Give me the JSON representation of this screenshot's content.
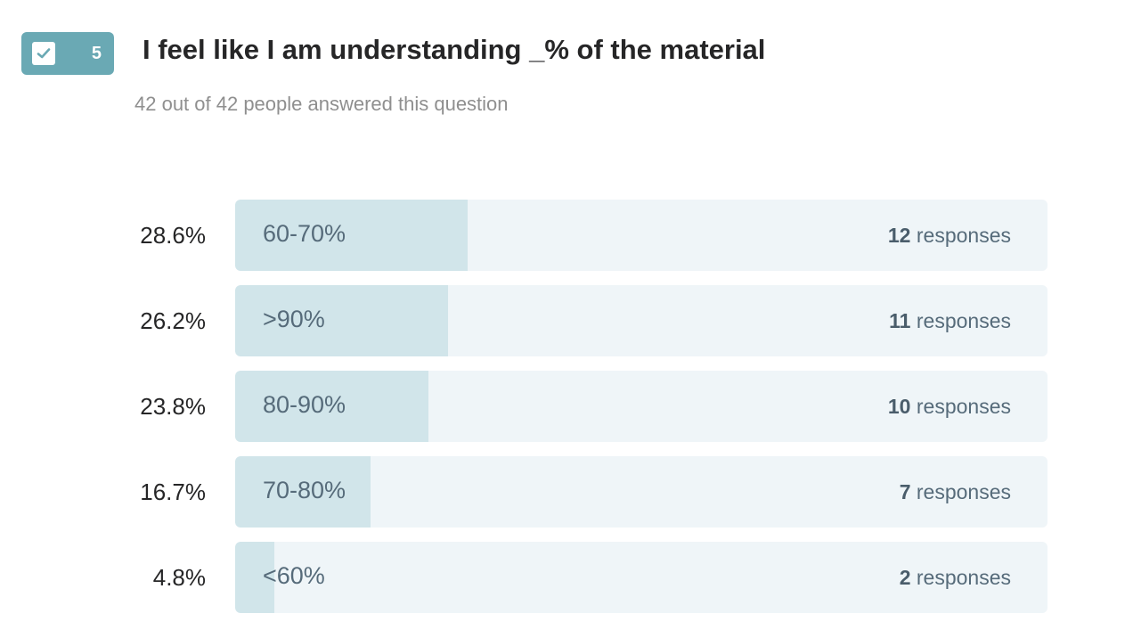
{
  "question": {
    "number": "5",
    "title": "I feel like I am understanding _% of the material",
    "answered_summary": "42 out of 42 people answered this question"
  },
  "colors": {
    "badge": "#6aa9b4",
    "bar_fill": "#d1e5ea",
    "bar_track": "#eff5f8",
    "label_text": "#566b7a"
  },
  "chart_data": {
    "type": "bar",
    "orientation": "horizontal",
    "title": "I feel like I am understanding _% of the material",
    "xlim": [
      0,
      100
    ],
    "categories": [
      "60-70%",
      ">90%",
      "80-90%",
      "70-80%",
      "<60%"
    ],
    "values": [
      28.6,
      26.2,
      23.8,
      16.7,
      4.8
    ],
    "percent_labels": [
      "28.6%",
      "26.2%",
      "23.8%",
      "16.7%",
      "4.8%"
    ],
    "response_counts": [
      "12",
      "11",
      "10",
      "7",
      "2"
    ],
    "response_unit": "responses"
  }
}
